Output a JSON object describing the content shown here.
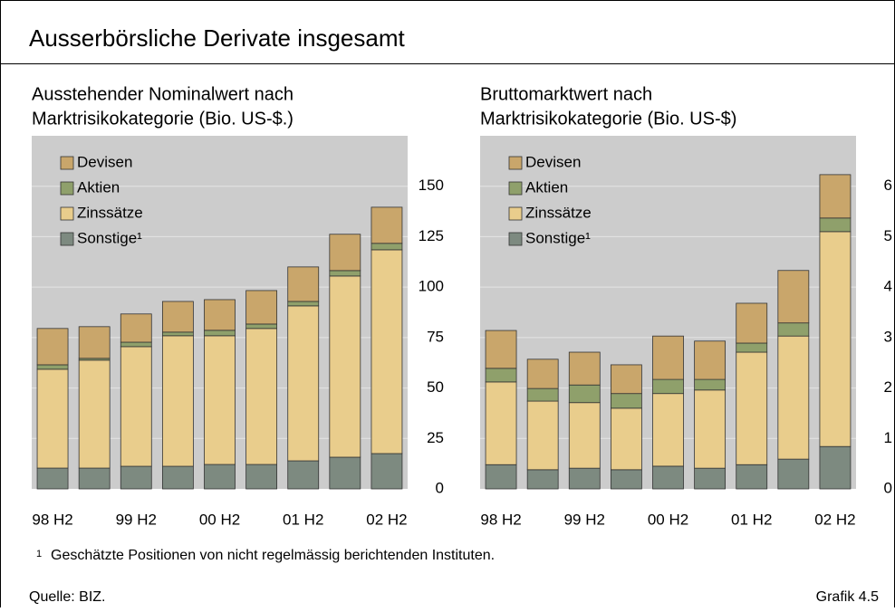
{
  "title": "Ausserbörsliche Derivate insgesamt",
  "chart_data": [
    {
      "type": "bar",
      "stacked": true,
      "title": [
        "Ausstehender Nominalwert nach",
        "Marktrisikokategorie (Bio. US-$.)"
      ],
      "categories": [
        "98 H2",
        null,
        "99 H2",
        null,
        "00 H2",
        null,
        "01 H2",
        null,
        "02 H2"
      ],
      "series": [
        {
          "name": "Devisen",
          "color": "#c9a66b",
          "values": [
            18,
            15.7,
            14,
            15.2,
            15.2,
            16.6,
            17.1,
            18,
            17.9
          ]
        },
        {
          "name": "Aktien",
          "color": "#8fa06b",
          "values": [
            2.2,
            0.9,
            2.2,
            1.8,
            2.7,
            2.2,
            2.2,
            2.7,
            3.2
          ]
        },
        {
          "name": "Zinssätze",
          "color": "#e9cd8c",
          "values": [
            49,
            53.5,
            59.3,
            64.7,
            63.8,
            67.4,
            76.8,
            89.8,
            101
          ]
        },
        {
          "name": "Sonstige¹",
          "color": "#7d8a80",
          "values": [
            10.3,
            10.3,
            11.2,
            11.2,
            12.1,
            12.1,
            13.9,
            15.7,
            17.5
          ]
        }
      ],
      "ylim": [
        0,
        175
      ],
      "yticks": [
        0,
        25,
        50,
        75,
        100,
        125,
        150
      ],
      "grid": true,
      "legend": "top-left"
    },
    {
      "type": "bar",
      "stacked": true,
      "title": [
        "Bruttomarktwert nach",
        "Marktrisikokategorie (Bio. US-$)"
      ],
      "categories": [
        "98 H2",
        null,
        "99 H2",
        null,
        "00 H2",
        null,
        "01 H2",
        null,
        "02 H2"
      ],
      "series": [
        {
          "name": "Devisen",
          "color": "#c9a66b",
          "values": [
            0.75,
            0.58,
            0.65,
            0.57,
            0.86,
            0.76,
            0.79,
            1.04,
            0.86
          ]
        },
        {
          "name": "Aktien",
          "color": "#8fa06b",
          "values": [
            0.27,
            0.25,
            0.35,
            0.29,
            0.28,
            0.21,
            0.18,
            0.26,
            0.27
          ]
        },
        {
          "name": "Zinssätze",
          "color": "#e9cd8c",
          "values": [
            1.64,
            1.36,
            1.3,
            1.22,
            1.44,
            1.55,
            2.23,
            2.44,
            4.26
          ]
        },
        {
          "name": "Sonstige¹",
          "color": "#7d8a80",
          "values": [
            0.48,
            0.38,
            0.41,
            0.38,
            0.45,
            0.41,
            0.48,
            0.59,
            0.84
          ]
        }
      ],
      "ylim": [
        0,
        7
      ],
      "yticks": [
        0,
        1,
        2,
        3,
        4,
        5,
        6
      ],
      "grid": true,
      "legend": "top-left"
    }
  ],
  "footnote": {
    "marker": "1",
    "text": "Geschätzte Positionen von nicht regelmässig berichtenden Instituten."
  },
  "source": "Quelle: BIZ.",
  "figure_label": "Grafik 4.5"
}
